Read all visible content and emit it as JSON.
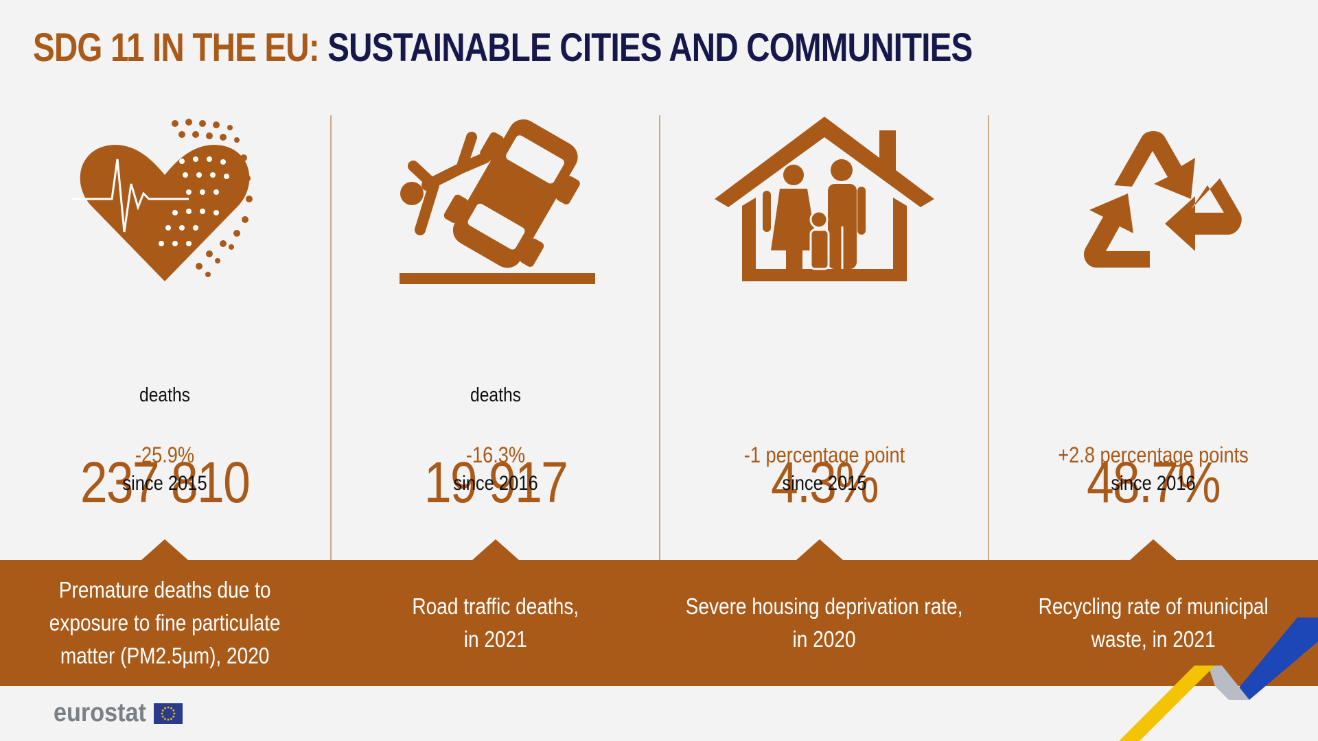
{
  "title": {
    "prefix": "SDG 11 IN THE EU:",
    "main": "SUSTAINABLE CITIES AND COMMUNITIES"
  },
  "colors": {
    "accent": "#a95a19",
    "title_dark": "#16174a",
    "background": "#f3f3f3",
    "band": "#a95a19",
    "stripe_yellow": "#f5c400",
    "stripe_blue": "#1d47b7"
  },
  "indicators": [
    {
      "icon": "heart-pulse-particles-icon",
      "value": "237 810",
      "unit": "deaths",
      "change": "-25.9%",
      "since": "since 2015",
      "description": "Premature deaths due to\nexposure to fine particulate\nmatter (PM2.5µm), 2020"
    },
    {
      "icon": "car-accident-icon",
      "value": "19 917",
      "unit": "deaths",
      "change": "-16.3%",
      "since": "since 2016",
      "description": "Road traffic deaths,\nin 2021"
    },
    {
      "icon": "house-family-icon",
      "value": "4.3%",
      "unit": "",
      "change": "-1 percentage point",
      "since": "since 2015",
      "description": "Severe housing deprivation rate,\nin 2020"
    },
    {
      "icon": "recycling-icon",
      "value": "48.7%",
      "unit": "",
      "change": "+2.8 percentage points",
      "since": "since 2016",
      "description": "Recycling rate of municipal\nwaste, in 2021"
    }
  ],
  "footer": {
    "logo": "eurostat"
  }
}
